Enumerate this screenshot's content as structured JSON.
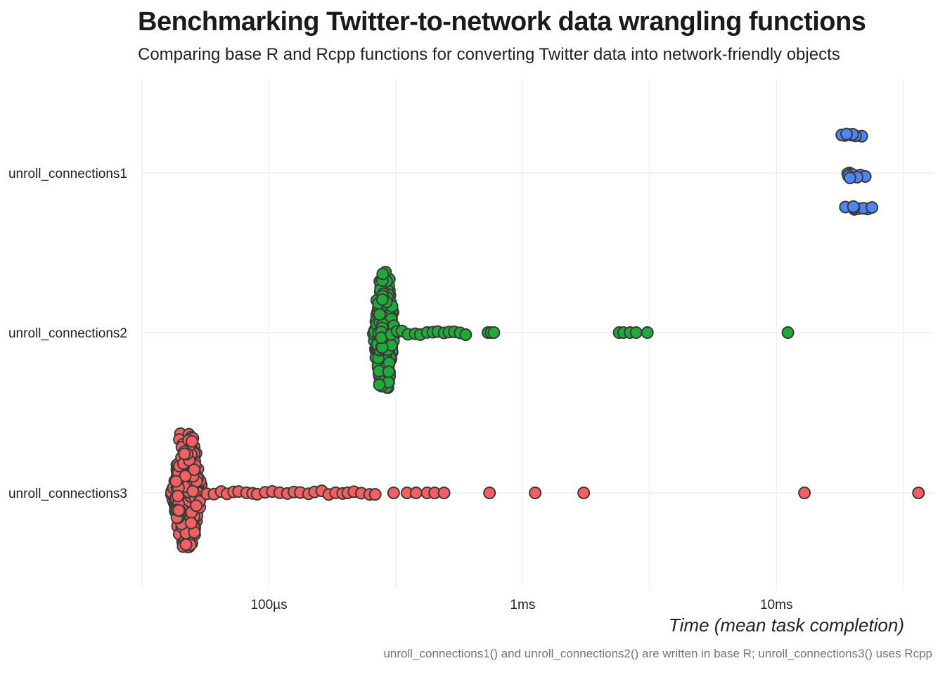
{
  "chart_data": {
    "type": "scatter",
    "title": "Benchmarking Twitter-to-network data wrangling functions",
    "subtitle": "Comparing base R and Rcpp functions for converting Twitter data into network-friendly objects",
    "xlabel": "Time (mean task completion)",
    "caption": "unroll_connections1() and unroll_connections2() are written in base R; unroll_connections3() uses Rcpp",
    "x_scale": "log10",
    "x_unit": "seconds",
    "xlim": [
      3.16e-05,
      0.0417
    ],
    "x_ticks": [
      {
        "value": 0.0001,
        "label": "100µs"
      },
      {
        "value": 0.001,
        "label": "1ms"
      },
      {
        "value": 0.01,
        "label": "10ms"
      }
    ],
    "categories": [
      "unroll_connections1",
      "unroll_connections2",
      "unroll_connections3"
    ],
    "grid": true,
    "legend": "none",
    "series": [
      {
        "category": "unroll_connections1",
        "color": "#4f86f7",
        "dense_core": null,
        "points": [
          0.0194,
          0.0203,
          0.0217,
          0.0191,
          0.0229,
          0.0205,
          0.0199,
          0.021,
          0.0186,
          0.0214,
          0.022,
          0.0198,
          0.0192,
          0.0202,
          0.0181,
          0.0224,
          0.0238,
          0.0196,
          0.0208,
          0.0187,
          0.02,
          0.0195,
          0.0201,
          0.0189
        ]
      },
      {
        "category": "unroll_connections2",
        "color": "#1faa3a",
        "dense_core": {
          "center": 0.000285,
          "low": 0.00026,
          "high": 0.00032,
          "tail_to": 0.00062
        },
        "points": [
          0.00073,
          0.00075,
          0.00077,
          0.0024,
          0.0025,
          0.00265,
          0.0028,
          0.0031,
          0.0111
        ]
      },
      {
        "category": "unroll_connections3",
        "color": "#f46060",
        "dense_core": {
          "center": 4.75e-05,
          "low": 4.25e-05,
          "high": 5.7e-05,
          "tail_to": 0.000275
        },
        "points": [
          0.00031,
          0.00035,
          0.00038,
          0.00042,
          0.00045,
          0.00049,
          0.00074,
          0.00112,
          0.00174,
          0.0129,
          0.0363
        ]
      }
    ]
  }
}
